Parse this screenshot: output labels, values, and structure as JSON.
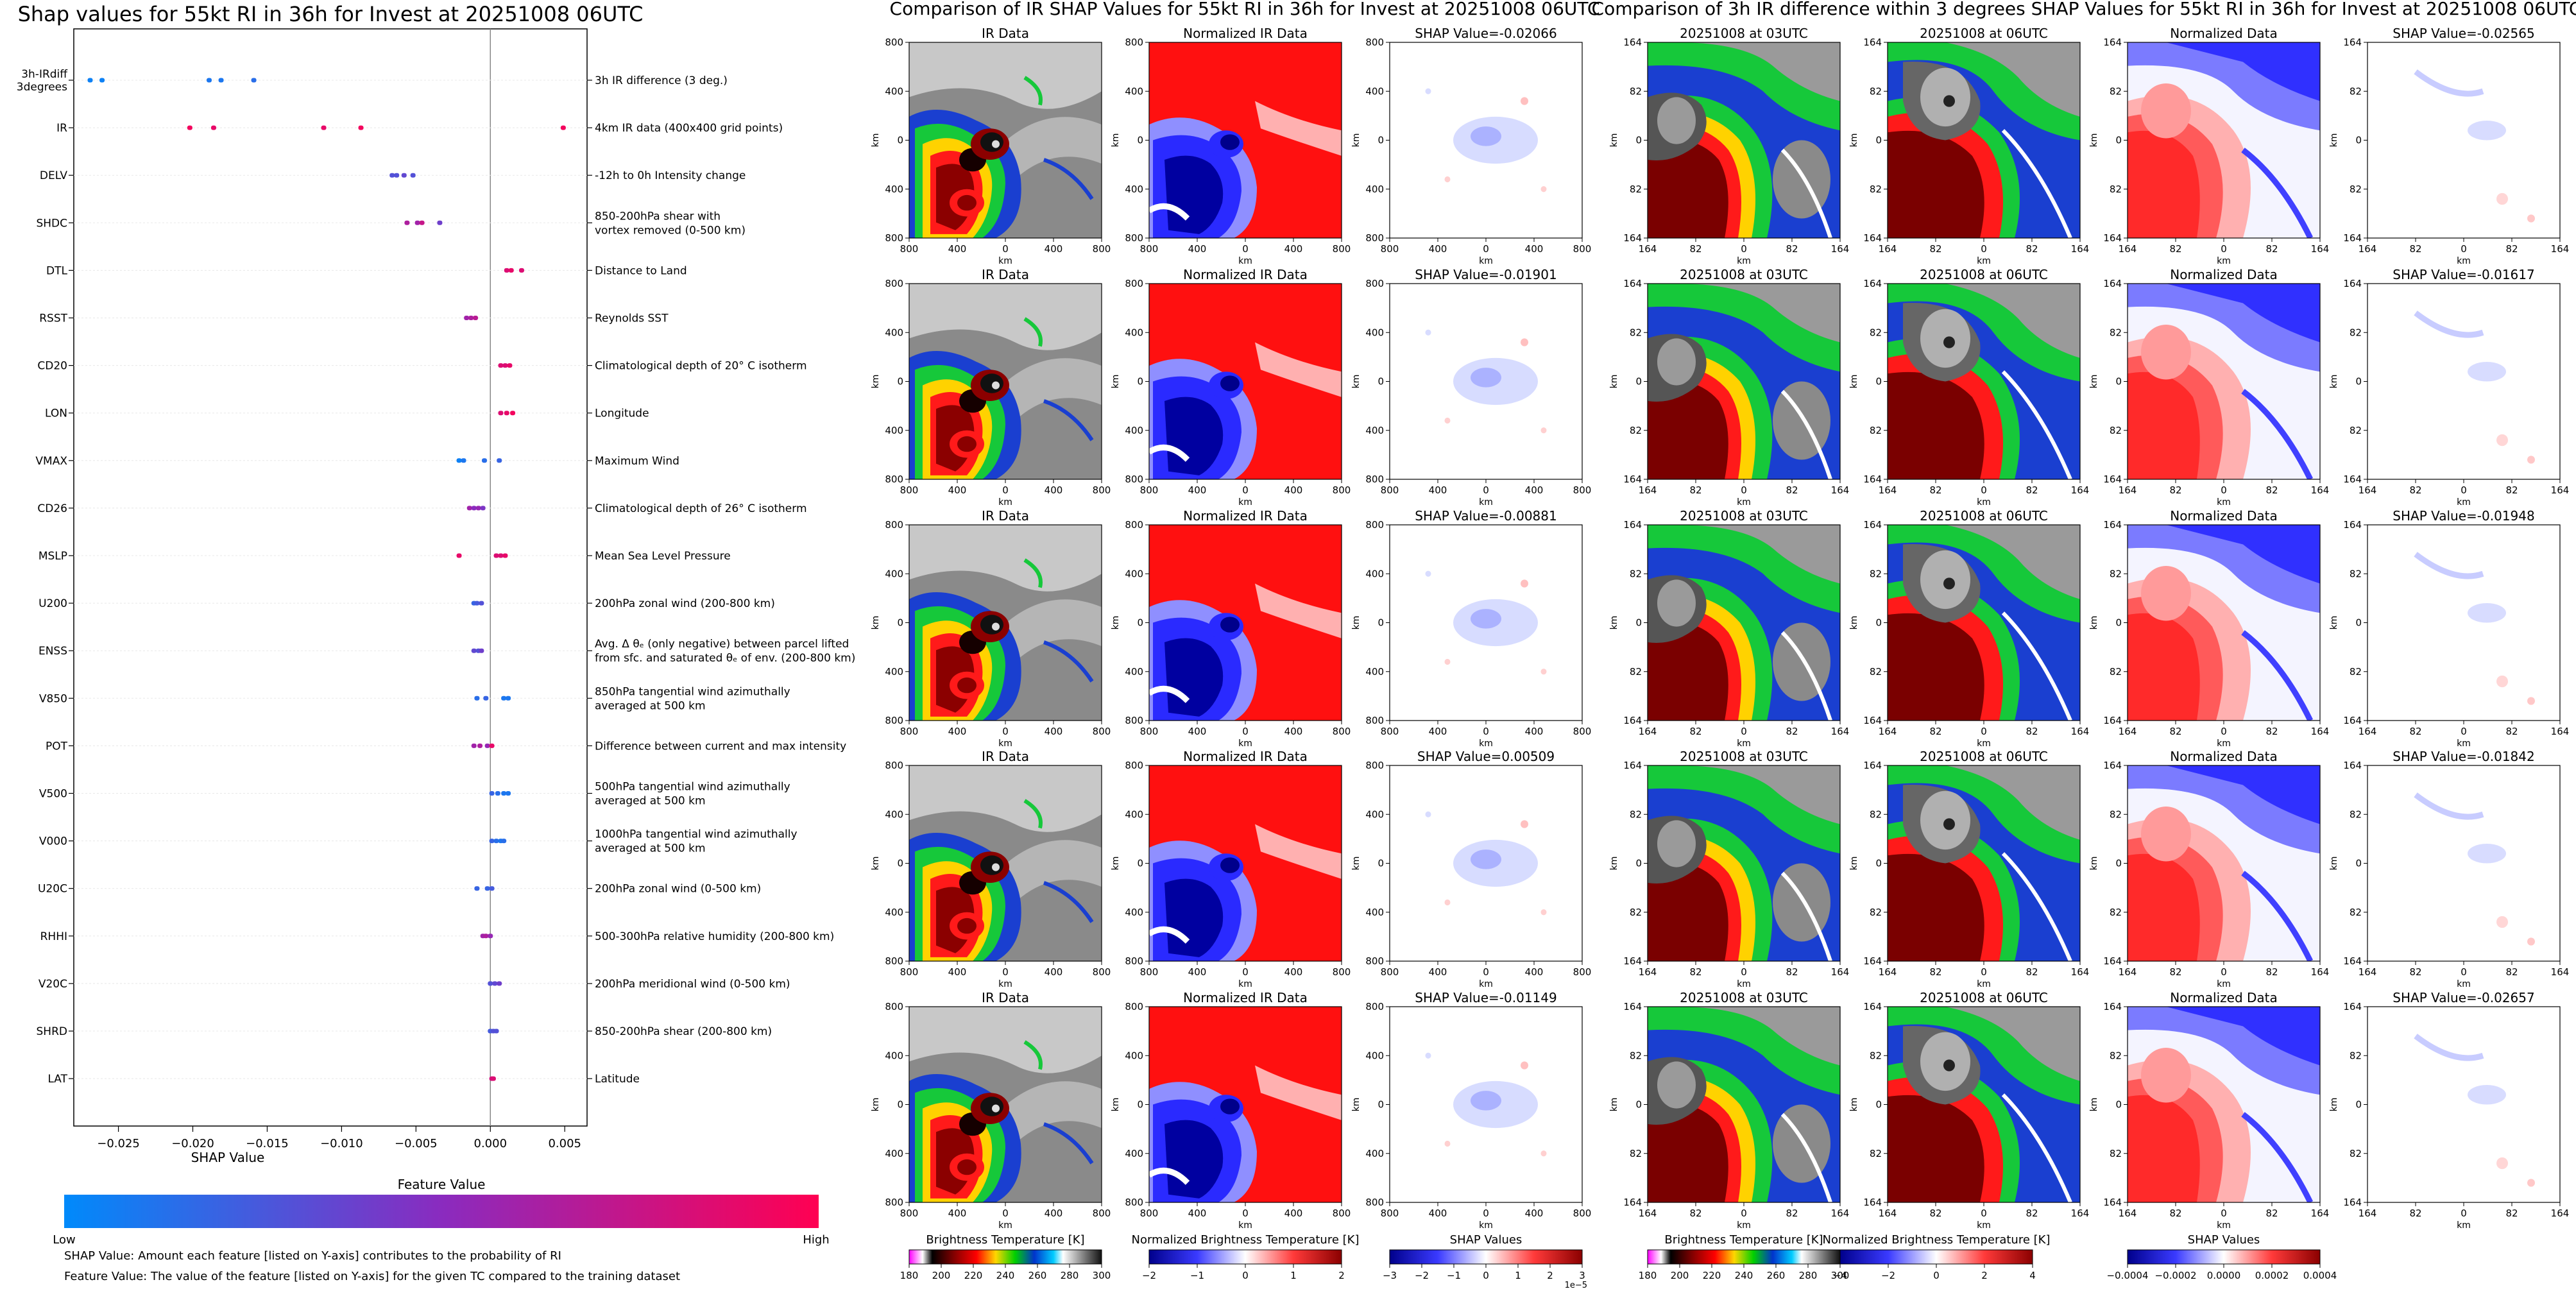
{
  "chart_data": [
    {
      "type": "scatter",
      "subtype": "shap-beeswarm",
      "title": "Shap values for 55kt RI in 36h for Invest at 20251008 06UTC",
      "xlabel": "SHAP Value",
      "xlim": [
        -0.028,
        0.0065
      ],
      "xticks": [
        -0.025,
        -0.02,
        -0.015,
        -0.01,
        -0.005,
        0.0,
        0.005
      ],
      "xtick_labels": [
        "−0.025",
        "−0.020",
        "−0.015",
        "−0.010",
        "−0.005",
        "0.000",
        "0.005"
      ],
      "colorbar": {
        "title": "Feature Value",
        "low_label": "Low",
        "high_label": "High",
        "low_color": "#008afb",
        "mid_color": "#8a2bbf",
        "high_color": "#ff0052"
      },
      "features": [
        {
          "name": "3h-IRdiff 3degrees",
          "description": "3h IR difference (3 deg.)",
          "points": [
            [
              -0.0269,
              0.05
            ],
            [
              -0.0261,
              0.05
            ],
            [
              -0.0189,
              0.1
            ],
            [
              -0.0181,
              0.1
            ],
            [
              -0.0159,
              0.15
            ]
          ]
        },
        {
          "name": "IR",
          "description": "4km IR data (400x400 grid points)",
          "points": [
            [
              -0.0202,
              0.95
            ],
            [
              -0.0186,
              0.9
            ],
            [
              -0.0112,
              0.9
            ],
            [
              -0.0087,
              0.95
            ],
            [
              0.0049,
              0.95
            ]
          ]
        },
        {
          "name": "DELV",
          "description": "-12h to 0h Intensity change",
          "points": [
            [
              -0.0066,
              0.3
            ],
            [
              -0.0063,
              0.3
            ],
            [
              -0.0058,
              0.35
            ],
            [
              -0.0052,
              0.3
            ]
          ]
        },
        {
          "name": "SHDC",
          "description": "850-200hPa shear with vortex removed (0-500 km)",
          "points": [
            [
              -0.0056,
              0.65
            ],
            [
              -0.0049,
              0.6
            ],
            [
              -0.0046,
              0.75
            ],
            [
              -0.0034,
              0.4
            ]
          ]
        },
        {
          "name": "DTL",
          "description": "Distance to Land",
          "points": [
            [
              0.0011,
              0.85
            ],
            [
              0.0014,
              0.9
            ],
            [
              0.0021,
              0.85
            ]
          ]
        },
        {
          "name": "RSST",
          "description": "Reynolds SST",
          "points": [
            [
              -0.0016,
              0.6
            ],
            [
              -0.0013,
              0.65
            ],
            [
              -0.001,
              0.7
            ]
          ]
        },
        {
          "name": "CD20",
          "description": "Climatological depth of 20° C isotherm",
          "points": [
            [
              0.0007,
              0.85
            ],
            [
              0.001,
              0.85
            ],
            [
              0.0013,
              0.9
            ]
          ]
        },
        {
          "name": "LON",
          "description": "Longitude",
          "points": [
            [
              0.0007,
              0.85
            ],
            [
              0.0011,
              0.9
            ],
            [
              0.0015,
              0.95
            ]
          ]
        },
        {
          "name": "VMAX",
          "description": "Maximum Wind",
          "points": [
            [
              -0.0021,
              0.05
            ],
            [
              -0.0018,
              0.1
            ],
            [
              -0.0004,
              0.15
            ],
            [
              0.0006,
              0.2
            ]
          ]
        },
        {
          "name": "CD26",
          "description": "Climatological depth of 26° C isotherm",
          "points": [
            [
              -0.0014,
              0.6
            ],
            [
              -0.0011,
              0.5
            ],
            [
              -0.0008,
              0.55
            ],
            [
              -0.0005,
              0.45
            ]
          ]
        },
        {
          "name": "MSLP",
          "description": "Mean Sea Level Pressure",
          "points": [
            [
              -0.0021,
              0.9
            ],
            [
              0.0004,
              0.85
            ],
            [
              0.0007,
              0.85
            ],
            [
              0.001,
              0.9
            ]
          ]
        },
        {
          "name": "U200",
          "description": "200hPa zonal wind (200-800 km)",
          "points": [
            [
              -0.0011,
              0.2
            ],
            [
              -0.0009,
              0.25
            ],
            [
              -0.0006,
              0.3
            ]
          ]
        },
        {
          "name": "ENSS",
          "description": "Avg. Δ θe (only negative) between parcel lifted from sfc. and saturated θe of env. (200-800 km)",
          "description_lines": [
            "Avg. Δ θₑ (only negative) between parcel lifted",
            "from sfc. and saturated θₑ of env. (200-800 km)"
          ],
          "points": [
            [
              -0.0011,
              0.35
            ],
            [
              -0.0008,
              0.3
            ],
            [
              -0.0006,
              0.4
            ]
          ]
        },
        {
          "name": "V850",
          "description": "850hPa tangential wind azimuthally averaged at 500 km",
          "points": [
            [
              -0.0009,
              0.15
            ],
            [
              -0.0003,
              0.2
            ],
            [
              0.0009,
              0.1
            ],
            [
              0.0012,
              0.1
            ]
          ]
        },
        {
          "name": "POT",
          "description": "Difference between current and max intensity",
          "points": [
            [
              -0.0011,
              0.6
            ],
            [
              -0.0007,
              0.65
            ],
            [
              -0.0002,
              0.55
            ],
            [
              0.0001,
              0.9
            ]
          ]
        },
        {
          "name": "V500",
          "description": "500hPa tangential wind azimuthally averaged at 500 km",
          "points": [
            [
              0.0001,
              0.2
            ],
            [
              0.0005,
              0.15
            ],
            [
              0.0009,
              0.1
            ],
            [
              0.0012,
              0.1
            ]
          ]
        },
        {
          "name": "V000",
          "description": "1000hPa tangential wind azimuthally averaged at 500 km",
          "points": [
            [
              0.0001,
              0.2
            ],
            [
              0.0004,
              0.15
            ],
            [
              0.0007,
              0.1
            ],
            [
              0.0009,
              0.15
            ]
          ]
        },
        {
          "name": "U20C",
          "description": "200hPa zonal wind (0-500 km)",
          "points": [
            [
              -0.0009,
              0.2
            ],
            [
              -0.0002,
              0.2
            ],
            [
              0.0001,
              0.25
            ]
          ]
        },
        {
          "name": "RHHI",
          "description": "500-300hPa relative humidity (200-800 km)",
          "points": [
            [
              -0.0005,
              0.6
            ],
            [
              -0.0003,
              0.65
            ],
            [
              0.0,
              0.55
            ]
          ]
        },
        {
          "name": "V20C",
          "description": "200hPa meridional wind (0-500 km)",
          "points": [
            [
              0.0,
              0.3
            ],
            [
              0.0003,
              0.35
            ],
            [
              0.0006,
              0.4
            ]
          ]
        },
        {
          "name": "SHRD",
          "description": "850-200hPa shear (200-800 km)",
          "points": [
            [
              0.0,
              0.25
            ],
            [
              0.0002,
              0.3
            ],
            [
              0.0004,
              0.3
            ]
          ]
        },
        {
          "name": "LAT",
          "description": "Latitude",
          "points": [
            [
              0.0001,
              0.8
            ],
            [
              0.0002,
              0.85
            ]
          ]
        }
      ],
      "notes": [
        "SHAP Value: Amount each feature [listed on Y-axis] contributes to the probability of RI",
        "Feature Value: The value of the feature [listed on Y-axis] for the given TC compared to the training dataset"
      ]
    },
    {
      "type": "heatmap",
      "title": "Comparison of IR SHAP Values for 55kt RI in 36h for Invest at 20251008 06UTC",
      "xlabel": "km",
      "ylabel": "km",
      "xlim": [
        -800,
        800
      ],
      "ylim": [
        -800,
        800
      ],
      "xtick_labels": [
        "800",
        "400",
        "0",
        "400",
        "800"
      ],
      "ytick_labels": [
        "800",
        "400",
        "0",
        "400",
        "800"
      ],
      "columns": [
        "IR Data",
        "Normalized IR Data",
        "SHAP Value"
      ],
      "shap_values": [
        "-0.02066",
        "-0.01901",
        "-0.00881",
        "0.00509",
        "-0.01149"
      ],
      "shap_title_prefix": "SHAP Value=",
      "colorbars": [
        {
          "label": "Brightness Temperature [K]",
          "ticks": [
            "180",
            "200",
            "220",
            "240",
            "260",
            "280",
            "300"
          ],
          "cmap": "ir"
        },
        {
          "label": "Normalized Brightness Temperature [K]",
          "ticks": [
            "−2",
            "−1",
            "0",
            "1",
            "2"
          ],
          "cmap": "bwr"
        },
        {
          "label": "SHAP Values",
          "ticks": [
            "−3",
            "−2",
            "−1",
            "0",
            "1",
            "2",
            "3"
          ],
          "offset": "1e−5",
          "cmap": "bwr"
        }
      ]
    },
    {
      "type": "heatmap",
      "title": "Comparison of 3h IR difference within 3 degrees SHAP Values for 55kt RI in 36h for Invest at 20251008 06UTC",
      "xlabel": "km",
      "ylabel": "km",
      "xlim": [
        -164,
        164
      ],
      "ylim": [
        -164,
        164
      ],
      "xtick_labels": [
        "164",
        "82",
        "0",
        "82",
        "164"
      ],
      "ytick_labels": [
        "164",
        "82",
        "0",
        "82",
        "164"
      ],
      "columns": [
        "20251008 at 03UTC",
        "20251008 at 06UTC",
        "Normalized Data",
        "SHAP Value"
      ],
      "shap_values": [
        "-0.02565",
        "-0.01617",
        "-0.01948",
        "-0.01842",
        "-0.02657"
      ],
      "shap_title_prefix": "SHAP Value=",
      "colorbars": [
        {
          "label": "Brightness Temperature [K]",
          "ticks": [
            "180",
            "200",
            "220",
            "240",
            "260",
            "280",
            "300"
          ],
          "cmap": "ir"
        },
        {
          "label": "Normalized Brightness Temperature [K]",
          "ticks": [
            "−4",
            "−2",
            "0",
            "2",
            "4"
          ],
          "cmap": "bwr"
        },
        {
          "label": "SHAP Values",
          "ticks": [
            "−0.0004",
            "−0.0002",
            "0.0000",
            "0.0002",
            "0.0004"
          ],
          "cmap": "bwr"
        }
      ]
    }
  ]
}
